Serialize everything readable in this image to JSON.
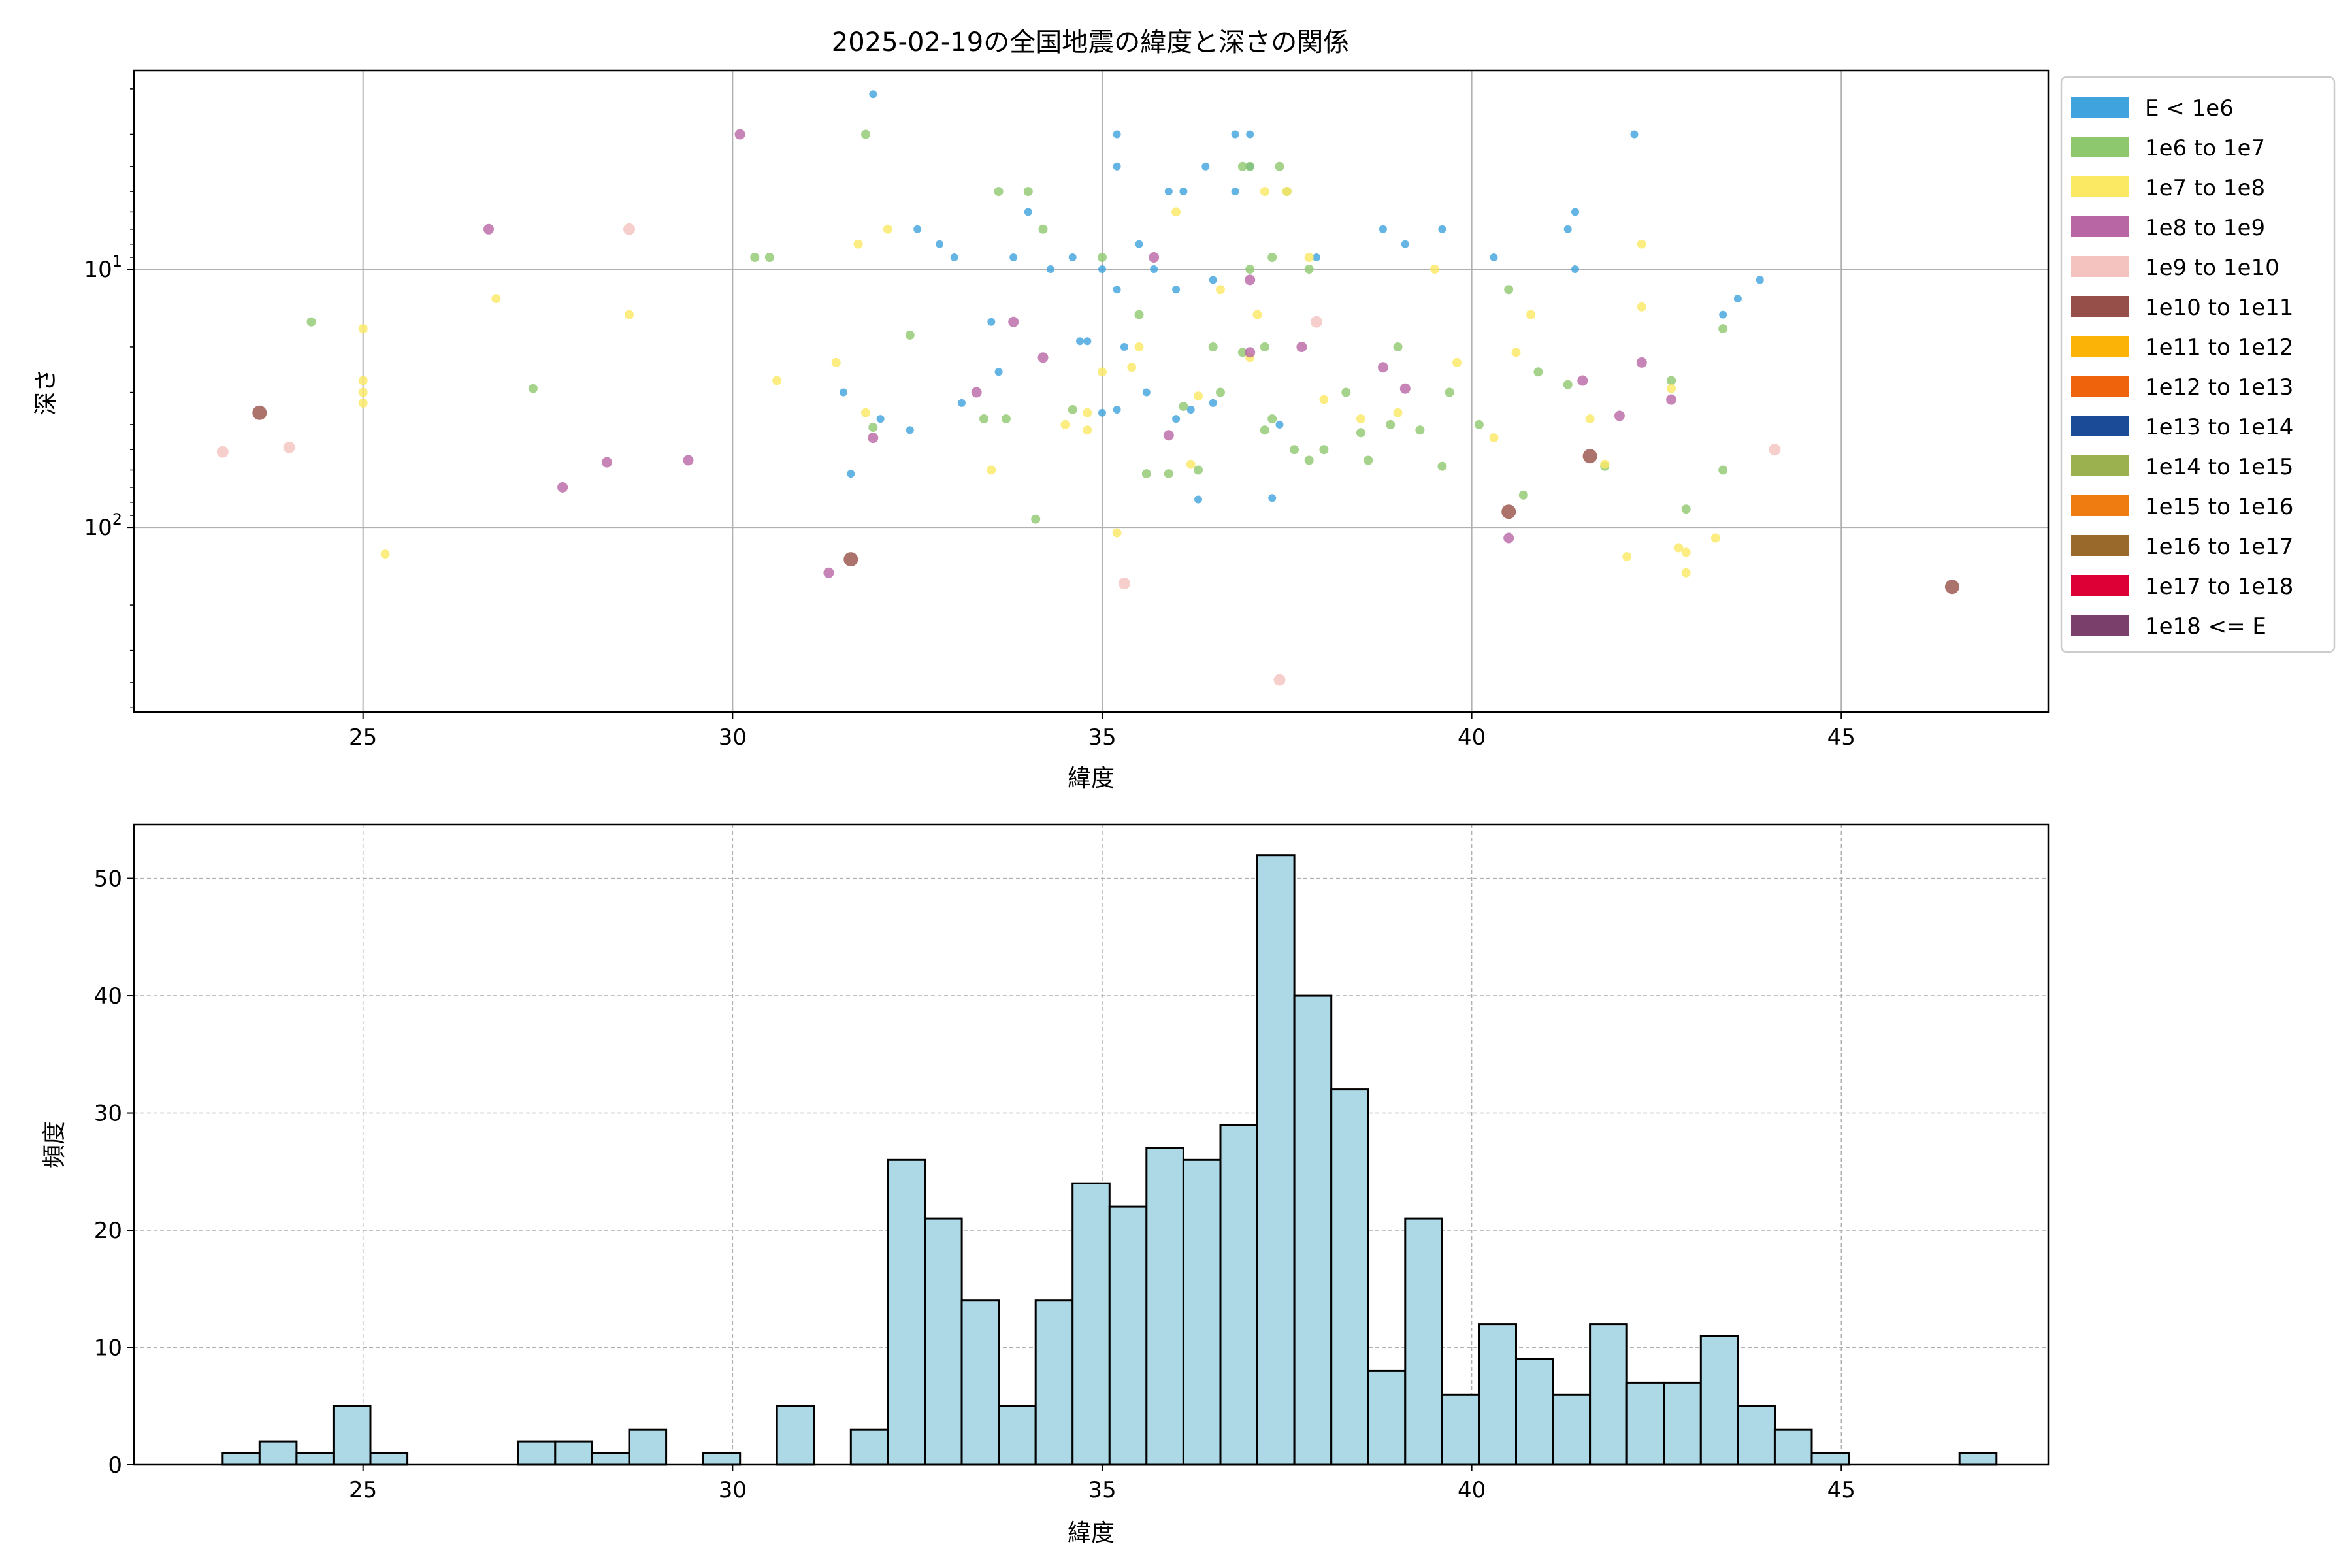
{
  "chart_data": [
    {
      "type": "scatter",
      "title": "2025-02-19の全国地震の緯度と深さの関係",
      "xlabel": "緯度",
      "ylabel": "深さ",
      "xlim": [
        21.9,
        47.8
      ],
      "ylim": [
        520,
        1.7
      ],
      "y_scale": "log",
      "y_inverted": true,
      "grid": true,
      "legend_position": "outside-right",
      "x_ticks": [
        "25",
        "30",
        "35",
        "40",
        "45"
      ],
      "y_ticks": [
        "10^1",
        "10^2"
      ],
      "legend": [
        {
          "label": "E < 1e6",
          "color": "#3fa3dd"
        },
        {
          "label": "1e6 to 1e7",
          "color": "#8ec86e"
        },
        {
          "label": "1e7 to 1e8",
          "color": "#fbe964"
        },
        {
          "label": "1e8 to 1e9",
          "color": "#b866a4"
        },
        {
          "label": "1e9 to 1e10",
          "color": "#f4c3bf"
        },
        {
          "label": "1e10 to 1e11",
          "color": "#975049"
        },
        {
          "label": "1e11 to 1e12",
          "color": "#fbb308"
        },
        {
          "label": "1e12 to 1e13",
          "color": "#ee630b"
        },
        {
          "label": "1e13 to 1e14",
          "color": "#1b4a97"
        },
        {
          "label": "1e14 to 1e15",
          "color": "#9bb04e"
        },
        {
          "label": "1e15 to 1e16",
          "color": "#ef7c10"
        },
        {
          "label": "1e16 to 1e17",
          "color": "#98692a"
        },
        {
          "label": "1e17 to 1e18",
          "color": "#dd0036"
        },
        {
          "label": "1e18 <= E",
          "color": "#7a3f6b"
        }
      ],
      "series": [
        {
          "name": "E < 1e6",
          "points": [
            [
              31.5,
              30
            ],
            [
              31.9,
              2.1
            ],
            [
              32.5,
              7
            ],
            [
              33.8,
              9
            ],
            [
              34.0,
              6
            ],
            [
              35.2,
              3
            ],
            [
              35.2,
              4
            ],
            [
              35.9,
              5
            ],
            [
              36.1,
              5
            ],
            [
              36.4,
              4
            ],
            [
              36.8,
              3
            ],
            [
              36.8,
              5
            ],
            [
              37.0,
              3
            ],
            [
              37.0,
              4
            ],
            [
              37.9,
              9
            ],
            [
              38.8,
              7
            ],
            [
              39.1,
              8
            ],
            [
              39.6,
              7
            ],
            [
              40.3,
              9
            ],
            [
              41.3,
              7
            ],
            [
              41.4,
              6
            ],
            [
              41.4,
              10
            ],
            [
              42.2,
              3
            ],
            [
              43.6,
              13
            ],
            [
              43.9,
              11
            ],
            [
              43.4,
              15
            ],
            [
              34.3,
              10
            ],
            [
              34.6,
              9
            ],
            [
              35.0,
              10
            ],
            [
              35.5,
              8
            ],
            [
              35.7,
              10
            ],
            [
              36.5,
              11
            ],
            [
              36.0,
              12
            ],
            [
              35.2,
              12
            ],
            [
              33.0,
              9
            ],
            [
              32.8,
              8
            ],
            [
              33.5,
              16
            ],
            [
              34.8,
              19
            ],
            [
              35.3,
              20
            ],
            [
              35.6,
              30
            ],
            [
              36.5,
              33
            ],
            [
              36.0,
              38
            ],
            [
              35.2,
              35
            ],
            [
              34.7,
              19
            ],
            [
              33.6,
              25
            ],
            [
              33.1,
              33
            ],
            [
              32.4,
              42
            ],
            [
              31.6,
              62
            ],
            [
              32.0,
              38
            ],
            [
              36.3,
              78
            ],
            [
              36.2,
              35
            ],
            [
              35.0,
              36
            ],
            [
              37.4,
              40
            ],
            [
              37.3,
              77
            ]
          ]
        },
        {
          "name": "1e6 to 1e7",
          "points": [
            [
              31.8,
              3
            ],
            [
              34.0,
              5
            ],
            [
              36.9,
              4
            ],
            [
              37.0,
              4
            ],
            [
              37.4,
              4
            ],
            [
              37.3,
              9
            ],
            [
              37.5,
              5
            ],
            [
              30.3,
              9
            ],
            [
              30.5,
              9
            ],
            [
              24.3,
              16
            ],
            [
              27.3,
              29
            ],
            [
              33.6,
              5
            ],
            [
              35.0,
              9
            ],
            [
              36.6,
              30
            ],
            [
              36.9,
              21
            ],
            [
              37.2,
              20
            ],
            [
              35.5,
              15
            ],
            [
              34.6,
              35
            ],
            [
              34.1,
              93
            ],
            [
              35.9,
              62
            ],
            [
              36.3,
              60
            ],
            [
              37.2,
              42
            ],
            [
              37.6,
              50
            ],
            [
              37.8,
              55
            ],
            [
              38.0,
              50
            ],
            [
              38.6,
              55
            ],
            [
              38.9,
              40
            ],
            [
              39.0,
              20
            ],
            [
              39.3,
              42
            ],
            [
              39.7,
              30
            ],
            [
              40.1,
              40
            ],
            [
              40.5,
              12
            ],
            [
              40.9,
              25
            ],
            [
              41.3,
              28
            ],
            [
              41.8,
              58
            ],
            [
              42.7,
              27
            ],
            [
              42.9,
              85
            ],
            [
              43.4,
              17
            ],
            [
              43.4,
              60
            ],
            [
              40.7,
              75
            ],
            [
              39.6,
              58
            ],
            [
              38.3,
              30
            ],
            [
              37.3,
              38
            ],
            [
              36.1,
              34
            ],
            [
              35.6,
              62
            ],
            [
              33.7,
              38
            ],
            [
              32.4,
              18
            ],
            [
              31.9,
              41
            ],
            [
              33.4,
              38
            ],
            [
              34.2,
              7
            ],
            [
              36.5,
              20
            ],
            [
              37.0,
              10
            ],
            [
              37.8,
              10
            ],
            [
              38.5,
              43
            ]
          ]
        },
        {
          "name": "1e7 to 1e8",
          "points": [
            [
              25.0,
              17
            ],
            [
              25.0,
              27
            ],
            [
              25.0,
              30
            ],
            [
              25.0,
              33
            ],
            [
              25.3,
              127
            ],
            [
              26.8,
              13
            ],
            [
              28.6,
              15
            ],
            [
              30.6,
              27
            ],
            [
              31.4,
              23
            ],
            [
              31.7,
              8
            ],
            [
              31.8,
              36
            ],
            [
              32.1,
              7
            ],
            [
              33.5,
              60
            ],
            [
              34.5,
              40
            ],
            [
              34.8,
              42
            ],
            [
              35.0,
              25
            ],
            [
              35.2,
              105
            ],
            [
              35.4,
              24
            ],
            [
              35.5,
              20
            ],
            [
              36.0,
              6
            ],
            [
              36.3,
              31
            ],
            [
              36.6,
              12
            ],
            [
              37.1,
              15
            ],
            [
              37.2,
              5
            ],
            [
              37.5,
              5
            ],
            [
              37.8,
              9
            ],
            [
              38.0,
              32
            ],
            [
              38.5,
              38
            ],
            [
              39.0,
              36
            ],
            [
              39.5,
              10
            ],
            [
              39.8,
              23
            ],
            [
              40.3,
              45
            ],
            [
              40.6,
              21
            ],
            [
              40.8,
              15
            ],
            [
              41.6,
              38
            ],
            [
              41.8,
              57
            ],
            [
              42.1,
              130
            ],
            [
              42.3,
              8
            ],
            [
              42.3,
              14
            ],
            [
              42.7,
              29
            ],
            [
              42.8,
              120
            ],
            [
              42.9,
              125
            ],
            [
              42.9,
              150
            ],
            [
              43.3,
              110
            ],
            [
              34.8,
              36
            ],
            [
              36.2,
              57
            ],
            [
              37.0,
              22
            ]
          ]
        },
        {
          "name": "1e8 to 1e9",
          "points": [
            [
              26.7,
              7
            ],
            [
              27.7,
              70
            ],
            [
              28.3,
              56
            ],
            [
              29.4,
              55
            ],
            [
              30.1,
              3
            ],
            [
              31.3,
              150
            ],
            [
              31.9,
              45
            ],
            [
              33.3,
              30
            ],
            [
              33.8,
              16
            ],
            [
              34.2,
              22
            ],
            [
              35.7,
              9
            ],
            [
              35.9,
              44
            ],
            [
              37.0,
              11
            ],
            [
              37.7,
              20
            ],
            [
              38.8,
              24
            ],
            [
              39.1,
              29
            ],
            [
              40.5,
              110
            ],
            [
              41.5,
              27
            ],
            [
              42.0,
              37
            ],
            [
              42.3,
              23
            ],
            [
              42.7,
              32
            ],
            [
              37.0,
              21
            ]
          ]
        },
        {
          "name": "1e9 to 1e10",
          "points": [
            [
              23.1,
              51
            ],
            [
              24.0,
              49
            ],
            [
              28.6,
              7
            ],
            [
              35.3,
              165
            ],
            [
              37.9,
              16
            ],
            [
              44.1,
              50
            ],
            [
              37.4,
              390
            ]
          ]
        },
        {
          "name": "1e10 to 1e11",
          "points": [
            [
              23.6,
              36
            ],
            [
              31.6,
              133
            ],
            [
              40.5,
              87
            ],
            [
              41.6,
              53
            ],
            [
              46.5,
              170
            ]
          ]
        }
      ]
    },
    {
      "type": "bar",
      "subtype": "histogram",
      "xlabel": "緯度",
      "ylabel": "頻度",
      "xlim": [
        21.9,
        47.8
      ],
      "ylim": [
        0,
        54.6
      ],
      "grid": true,
      "bar_color": "#add8e6",
      "edge_color": "#000000",
      "x_ticks": [
        "25",
        "30",
        "35",
        "40",
        "45"
      ],
      "y_ticks": [
        "0",
        "10",
        "20",
        "30",
        "40",
        "50"
      ],
      "bins": {
        "start": 23.1,
        "width": 0.5
      },
      "values": [
        1,
        2,
        1,
        5,
        1,
        0,
        0,
        0,
        2,
        2,
        1,
        3,
        0,
        1,
        0,
        5,
        0,
        3,
        26,
        21,
        14,
        5,
        14,
        24,
        22,
        27,
        26,
        29,
        52,
        40,
        32,
        8,
        21,
        6,
        12,
        9,
        6,
        12,
        7,
        7,
        11,
        5,
        3,
        1,
        0,
        0,
        0,
        1
      ]
    }
  ]
}
